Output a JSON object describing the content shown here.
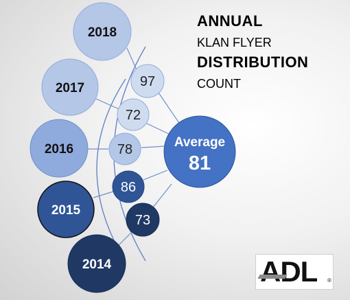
{
  "title": {
    "line1": "ANNUAL",
    "line2": "KLAN FLYER",
    "line3": "DISTRIBUTION",
    "line4": "COUNT"
  },
  "average": {
    "label": "Average",
    "value": "81"
  },
  "years": [
    {
      "id": "2018",
      "label": "2018",
      "count": "97",
      "fill": "#b4c7e7"
    },
    {
      "id": "2017",
      "label": "2017",
      "count": "72",
      "fill": "#b4c7e7"
    },
    {
      "id": "2016",
      "label": "2016",
      "count": "78",
      "fill": "#8faadc"
    },
    {
      "id": "2015",
      "label": "2015",
      "count": "86",
      "fill": "#2f5597"
    },
    {
      "id": "2014",
      "label": "2014",
      "count": "73",
      "fill": "#1f3864"
    }
  ],
  "colors": {
    "average_fill": "#4472c4",
    "connector": "#6f8fc9",
    "arc": "#5b7fc4"
  },
  "logo": {
    "text": "ADL",
    "registered": "®"
  }
}
